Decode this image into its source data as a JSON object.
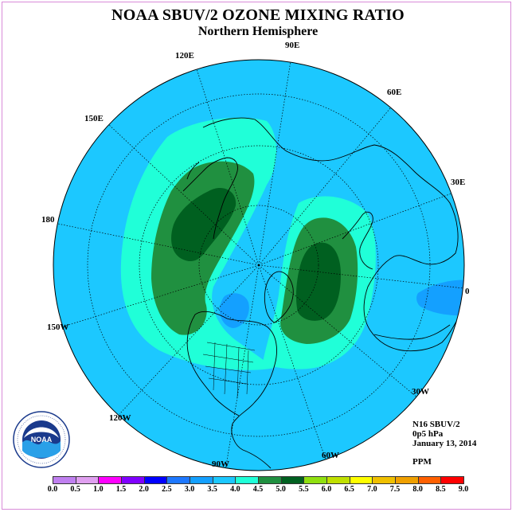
{
  "title": "NOAA SBUV/2 OZONE MIXING RATIO",
  "subtitle": "Northern Hemisphere",
  "longitude_labels": {
    "l90e": "90E",
    "l60e": "60E",
    "l30e": "30E",
    "l0": "0",
    "l30w": "30W",
    "l60w": "60W",
    "l90w": "90W",
    "l120w": "120W",
    "l150w": "150W",
    "l180": "180",
    "l150e": "150E",
    "l120e": "120E"
  },
  "info": {
    "satellite": "N16 SBUV/2",
    "level": "0p5 hPa",
    "date": "January 13, 2014",
    "units": "PPM"
  },
  "logo": {
    "name": "noaa-logo",
    "text": "NOAA",
    "ring_text": "NATIONAL OCEANIC AND ATMOSPHERIC ADMINISTRATION · U.S. DEPARTMENT OF COMMERCE"
  },
  "colorbar": {
    "labels": [
      "0.0",
      "0.5",
      "1.0",
      "1.5",
      "2.0",
      "2.5",
      "3.0",
      "3.5",
      "4.0",
      "4.5",
      "5.0",
      "5.5",
      "6.0",
      "6.5",
      "7.0",
      "7.5",
      "8.0",
      "8.5",
      "9.0"
    ],
    "colors": [
      "#c080f0",
      "#e0a0f0",
      "#ff00ff",
      "#8000ff",
      "#0000ff",
      "#1e78ff",
      "#14a0ff",
      "#1cc8ff",
      "#20ffd8",
      "#209040",
      "#006020",
      "#90e010",
      "#c0e000",
      "#ffff00",
      "#f0c000",
      "#f0a000",
      "#ff6000",
      "#ff0000",
      "#8b5a3c"
    ]
  },
  "map_colors": {
    "ocean_level": "#1cc8ff",
    "band_3_5": "#20ffd8",
    "band_4_0": "#209040",
    "band_4_5": "#006020",
    "low_2_5": "#14a0ff"
  }
}
